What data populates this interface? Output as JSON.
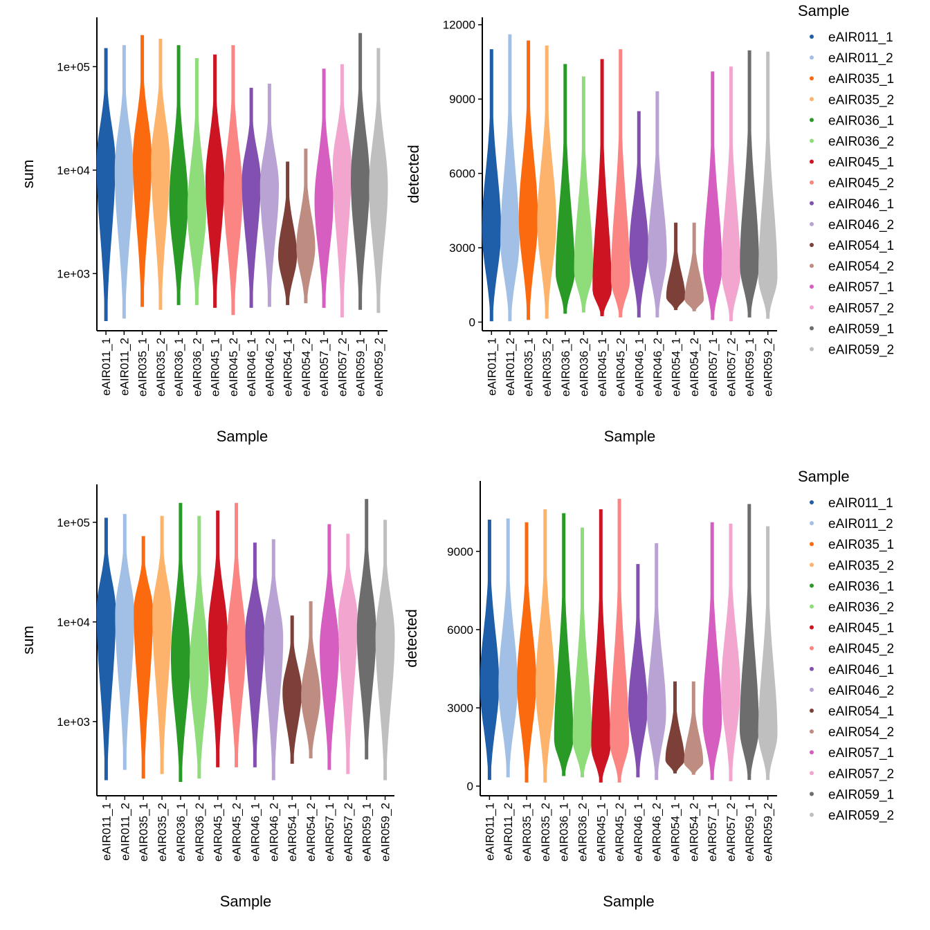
{
  "chart_data": [
    {
      "type": "violin",
      "x_label": "Sample",
      "y_label": "sum",
      "log": true,
      "categories": [
        "eAIR011_1",
        "eAIR011_2",
        "eAIR035_1",
        "eAIR035_2",
        "eAIR036_1",
        "eAIR036_2",
        "eAIR045_1",
        "eAIR045_2",
        "eAIR046_1",
        "eAIR046_2",
        "eAIR054_1",
        "eAIR054_2",
        "eAIR057_1",
        "eAIR057_2",
        "eAIR059_1",
        "eAIR059_2"
      ],
      "colors": [
        "#1f5ea8",
        "#a2c0e6",
        "#fb6a0f",
        "#fdb36b",
        "#2a9a27",
        "#8fdc7a",
        "#cc1422",
        "#fb8582",
        "#8250b0",
        "#b9a3d4",
        "#7c4038",
        "#bf8c82",
        "#d65ec0",
        "#f2a6cf",
        "#6d6d6d",
        "#bfbfbf"
      ],
      "min": [
        350,
        370,
        480,
        450,
        500,
        500,
        470,
        400,
        470,
        480,
        500,
        520,
        470,
        380,
        450,
        420
      ],
      "median": [
        12000,
        10000,
        13000,
        12000,
        5000,
        4000,
        8000,
        6000,
        8000,
        7000,
        1500,
        1800,
        5000,
        11000,
        8000,
        7000
      ],
      "max": [
        150000,
        160000,
        200000,
        185000,
        160000,
        120000,
        130000,
        160000,
        62000,
        68000,
        12000,
        16000,
        95000,
        105000,
        210000,
        150000
      ],
      "ylim": [
        280,
        300000
      ],
      "yticks": [
        {
          "value": 1000,
          "label": "1e+03"
        },
        {
          "value": 10000,
          "label": "1e+04"
        },
        {
          "value": 100000,
          "label": "1e+05"
        }
      ]
    },
    {
      "type": "violin",
      "x_label": "Sample",
      "y_label": "detected",
      "log": false,
      "categories": [
        "eAIR011_1",
        "eAIR011_2",
        "eAIR035_1",
        "eAIR035_2",
        "eAIR036_1",
        "eAIR036_2",
        "eAIR045_1",
        "eAIR045_2",
        "eAIR046_1",
        "eAIR046_2",
        "eAIR054_1",
        "eAIR054_2",
        "eAIR057_1",
        "eAIR057_2",
        "eAIR059_1",
        "eAIR059_2"
      ],
      "colors": [
        "#1f5ea8",
        "#a2c0e6",
        "#fb6a0f",
        "#fdb36b",
        "#2a9a27",
        "#8fdc7a",
        "#cc1422",
        "#fb8582",
        "#8250b0",
        "#b9a3d4",
        "#7c4038",
        "#bf8c82",
        "#d65ec0",
        "#f2a6cf",
        "#6d6d6d",
        "#bfbfbf"
      ],
      "min": [
        50,
        50,
        100,
        150,
        350,
        400,
        250,
        200,
        200,
        200,
        500,
        450,
        100,
        50,
        200,
        150
      ],
      "median": [
        3700,
        3300,
        4200,
        4000,
        2000,
        2100,
        1300,
        1700,
        3000,
        2700,
        1000,
        900,
        2200,
        2000,
        2300,
        1800
      ],
      "max": [
        11000,
        11600,
        11350,
        11150,
        10400,
        9900,
        10600,
        11000,
        8500,
        9300,
        4000,
        4000,
        10100,
        10300,
        10950,
        10900
      ],
      "ylim": [
        -350,
        12300
      ],
      "yticks": [
        0,
        3000,
        6000,
        9000,
        12000
      ],
      "legend": {
        "title": "Sample",
        "entries": [
          "eAIR011_1",
          "eAIR011_2",
          "eAIR035_1",
          "eAIR035_2",
          "eAIR036_1",
          "eAIR036_2",
          "eAIR045_1",
          "eAIR045_2",
          "eAIR046_1",
          "eAIR046_2",
          "eAIR054_1",
          "eAIR054_2",
          "eAIR057_1",
          "eAIR057_2",
          "eAIR059_1",
          "eAIR059_2"
        ]
      }
    },
    {
      "type": "violin",
      "x_label": "Sample",
      "y_label": "sum",
      "log": true,
      "categories": [
        "eAIR011_1",
        "eAIR011_2",
        "eAIR035_1",
        "eAIR035_2",
        "eAIR036_1",
        "eAIR036_2",
        "eAIR045_1",
        "eAIR045_2",
        "eAIR046_1",
        "eAIR046_2",
        "eAIR054_1",
        "eAIR054_2",
        "eAIR057_1",
        "eAIR057_2",
        "eAIR059_1",
        "eAIR059_2"
      ],
      "colors": [
        "#1f5ea8",
        "#a2c0e6",
        "#fb6a0f",
        "#fdb36b",
        "#2a9a27",
        "#8fdc7a",
        "#cc1422",
        "#fb8582",
        "#8250b0",
        "#b9a3d4",
        "#7c4038",
        "#bf8c82",
        "#d65ec0",
        "#f2a6cf",
        "#6d6d6d",
        "#bfbfbf"
      ],
      "min": [
        260,
        330,
        270,
        300,
        250,
        270,
        350,
        350,
        350,
        260,
        380,
        430,
        330,
        300,
        420,
        260
      ],
      "median": [
        13000,
        12000,
        13000,
        12000,
        4500,
        3500,
        8000,
        6000,
        8000,
        7000,
        2000,
        1800,
        5500,
        11000,
        8000,
        7000
      ],
      "max": [
        110000,
        120000,
        72000,
        115000,
        155000,
        115000,
        130000,
        155000,
        62000,
        67000,
        11500,
        16000,
        95000,
        76000,
        170000,
        105000
      ],
      "ylim": [
        180,
        240000
      ],
      "yticks": [
        {
          "value": 1000,
          "label": "1e+03"
        },
        {
          "value": 10000,
          "label": "1e+04"
        },
        {
          "value": 100000,
          "label": "1e+05"
        }
      ]
    },
    {
      "type": "violin",
      "x_label": "Sample",
      "y_label": "detected",
      "log": false,
      "categories": [
        "eAIR011_1",
        "eAIR011_2",
        "eAIR035_1",
        "eAIR035_2",
        "eAIR036_1",
        "eAIR036_2",
        "eAIR045_1",
        "eAIR045_2",
        "eAIR046_1",
        "eAIR046_2",
        "eAIR054_1",
        "eAIR054_2",
        "eAIR057_1",
        "eAIR057_2",
        "eAIR059_1",
        "eAIR059_2"
      ],
      "colors": [
        "#1f5ea8",
        "#a2c0e6",
        "#fb6a0f",
        "#fdb36b",
        "#2a9a27",
        "#8fdc7a",
        "#cc1422",
        "#fb8582",
        "#8250b0",
        "#b9a3d4",
        "#7c4038",
        "#bf8c82",
        "#d65ec0",
        "#f2a6cf",
        "#6d6d6d",
        "#bfbfbf"
      ],
      "min": [
        250,
        350,
        150,
        150,
        400,
        350,
        150,
        150,
        350,
        250,
        500,
        450,
        250,
        200,
        250,
        250
      ],
      "median": [
        3900,
        3800,
        4000,
        3800,
        1800,
        1800,
        1500,
        1700,
        3000,
        2800,
        1000,
        900,
        2500,
        3700,
        2200,
        2000
      ],
      "max": [
        10200,
        10250,
        10100,
        10600,
        10450,
        9900,
        10600,
        11000,
        8500,
        9300,
        4000,
        4000,
        10100,
        10050,
        10800,
        9950
      ],
      "ylim": [
        -370,
        11700
      ],
      "yticks": [
        0,
        3000,
        6000,
        9000
      ],
      "legend": {
        "title": "Sample",
        "entries": [
          "eAIR011_1",
          "eAIR011_2",
          "eAIR035_1",
          "eAIR035_2",
          "eAIR036_1",
          "eAIR036_2",
          "eAIR045_1",
          "eAIR045_2",
          "eAIR046_1",
          "eAIR046_2",
          "eAIR054_1",
          "eAIR054_2",
          "eAIR057_1",
          "eAIR057_2",
          "eAIR059_1",
          "eAIR059_2"
        ]
      }
    }
  ]
}
